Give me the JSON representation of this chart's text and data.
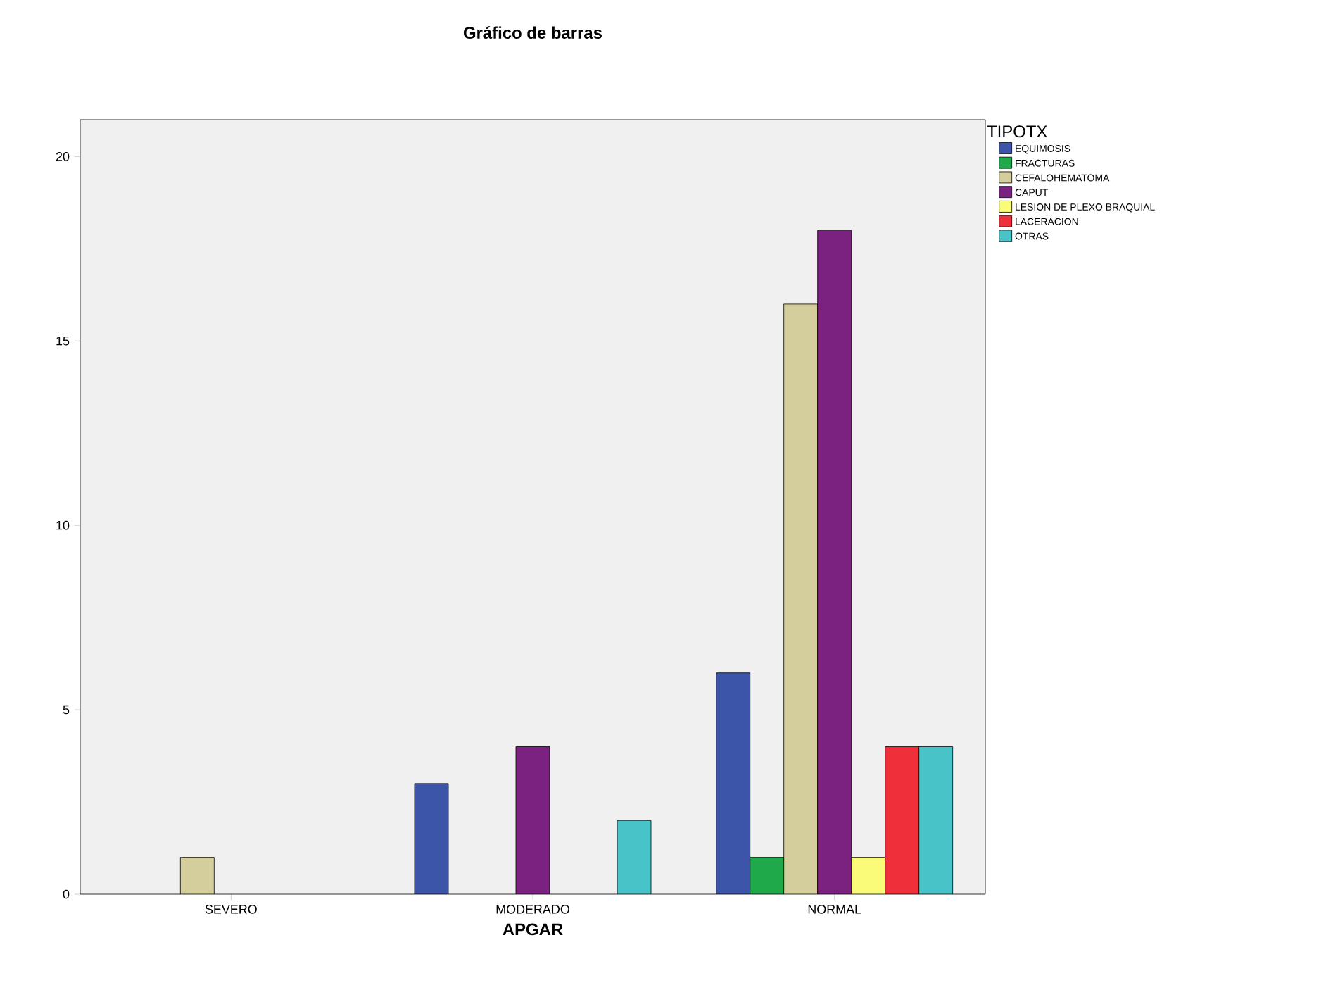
{
  "chart_data": {
    "type": "bar",
    "title": "Gráfico de barras",
    "xlabel": "APGAR",
    "legend_title": "TIPOTX",
    "categories": [
      "SEVERO",
      "MODERADO",
      "NORMAL"
    ],
    "ylim": [
      0,
      21
    ],
    "yticks": [
      0,
      5,
      10,
      15,
      20
    ],
    "grid": false,
    "legend": "right",
    "series": [
      {
        "name": "EQUIMOSIS",
        "color": "#3d55a8",
        "values": [
          null,
          3,
          6
        ]
      },
      {
        "name": "FRACTURAS",
        "color": "#1fa94a",
        "values": [
          null,
          null,
          1
        ]
      },
      {
        "name": "CEFALOHEMATOMA",
        "color": "#d4ce9c",
        "values": [
          1,
          null,
          16
        ]
      },
      {
        "name": "CAPUT",
        "color": "#7b2180",
        "values": [
          null,
          4,
          18
        ]
      },
      {
        "name": "LESION DE PLEXO BRAQUIAL",
        "color": "#fbfb7a",
        "values": [
          null,
          null,
          1
        ]
      },
      {
        "name": "LACERACION",
        "color": "#ef303a",
        "values": [
          null,
          null,
          4
        ]
      },
      {
        "name": "OTRAS",
        "color": "#48c4c8",
        "values": [
          null,
          2,
          4
        ]
      }
    ]
  }
}
